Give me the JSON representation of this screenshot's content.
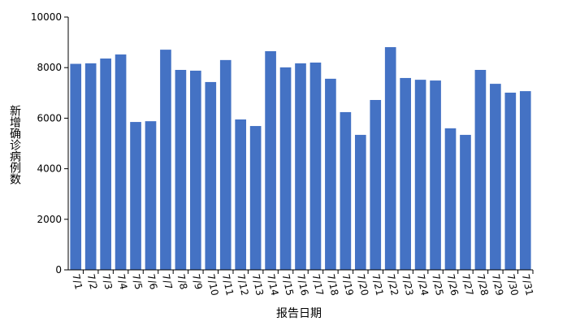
{
  "chart_data": {
    "type": "bar",
    "x_label": "报告日期",
    "y_label": "新增确诊病例数",
    "categories": [
      "7/1",
      "7/2",
      "7/3",
      "7/4",
      "7/5",
      "7/6",
      "7/7",
      "7/8",
      "7/9",
      "7/10",
      "7/11",
      "7/12",
      "7/13",
      "7/14",
      "7/15",
      "7/16",
      "7/17",
      "7/18",
      "7/19",
      "7/20",
      "7/21",
      "7/22",
      "7/23",
      "7/24",
      "7/25",
      "7/26",
      "7/27",
      "7/28",
      "7/29",
      "7/30",
      "7/31"
    ],
    "values": [
      8150,
      8170,
      8360,
      8520,
      5850,
      5880,
      8710,
      7910,
      7880,
      7430,
      8300,
      5950,
      5690,
      8650,
      8010,
      8170,
      8200,
      7560,
      6240,
      5340,
      6720,
      8810,
      7590,
      7520,
      7490,
      5600,
      5340,
      7910,
      7360,
      7010,
      7070
    ],
    "color": "#4472c4",
    "ylim": [
      0,
      10000
    ],
    "yticks": [
      0,
      2000,
      4000,
      6000,
      8000,
      10000
    ]
  }
}
